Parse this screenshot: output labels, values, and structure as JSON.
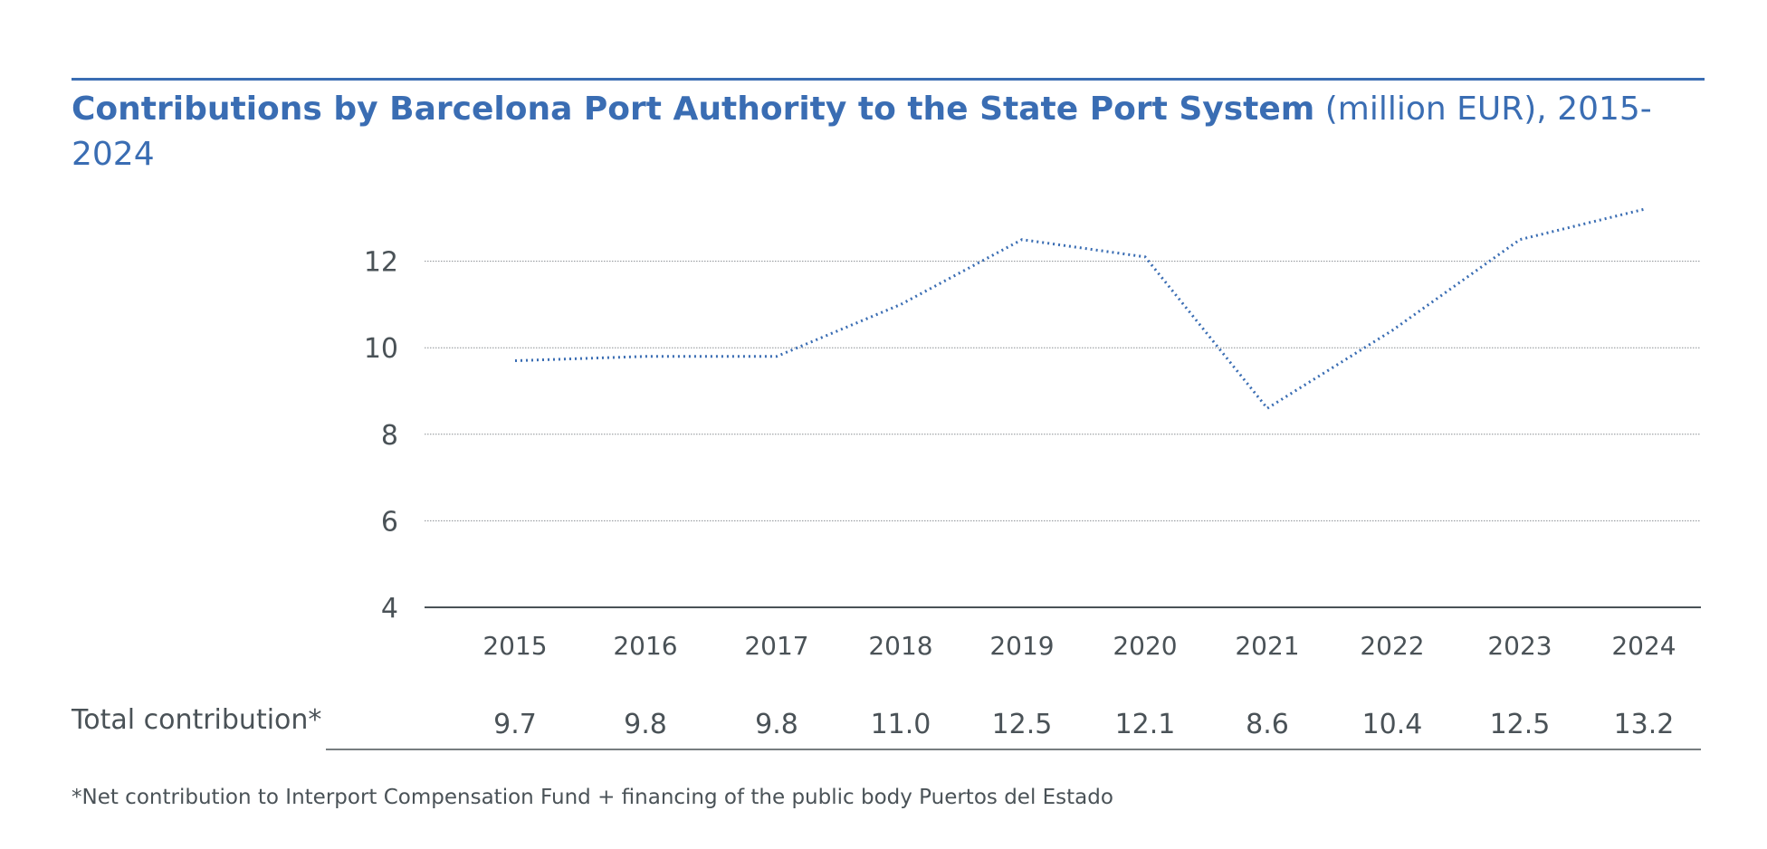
{
  "title": {
    "bold": "Contributions by Barcelona Port Authority to the State Port System",
    "rest": " (million EUR), 2015-2024"
  },
  "chart_data": {
    "type": "line",
    "categories": [
      "2015",
      "2016",
      "2017",
      "2018",
      "2019",
      "2020",
      "2021",
      "2022",
      "2023",
      "2024"
    ],
    "series": [
      {
        "values": [
          9.7,
          9.8,
          9.8,
          11.0,
          12.5,
          12.1,
          8.6,
          10.4,
          12.5,
          13.2
        ]
      }
    ],
    "ylim": [
      4,
      13.5
    ],
    "yticks": [
      4,
      6,
      8,
      10,
      12
    ],
    "grid": true,
    "line_style": "dotted",
    "color": "#3a6db3"
  },
  "table": {
    "row_label": "Total contribution*",
    "values": [
      "9.7",
      "9.8",
      "9.8",
      "11.0",
      "12.5",
      "12.1",
      "8.6",
      "10.4",
      "12.5",
      "13.2"
    ]
  },
  "footnote": "*Net contribution to Interport Compensation Fund + financing of the public body Puertos del Estado"
}
